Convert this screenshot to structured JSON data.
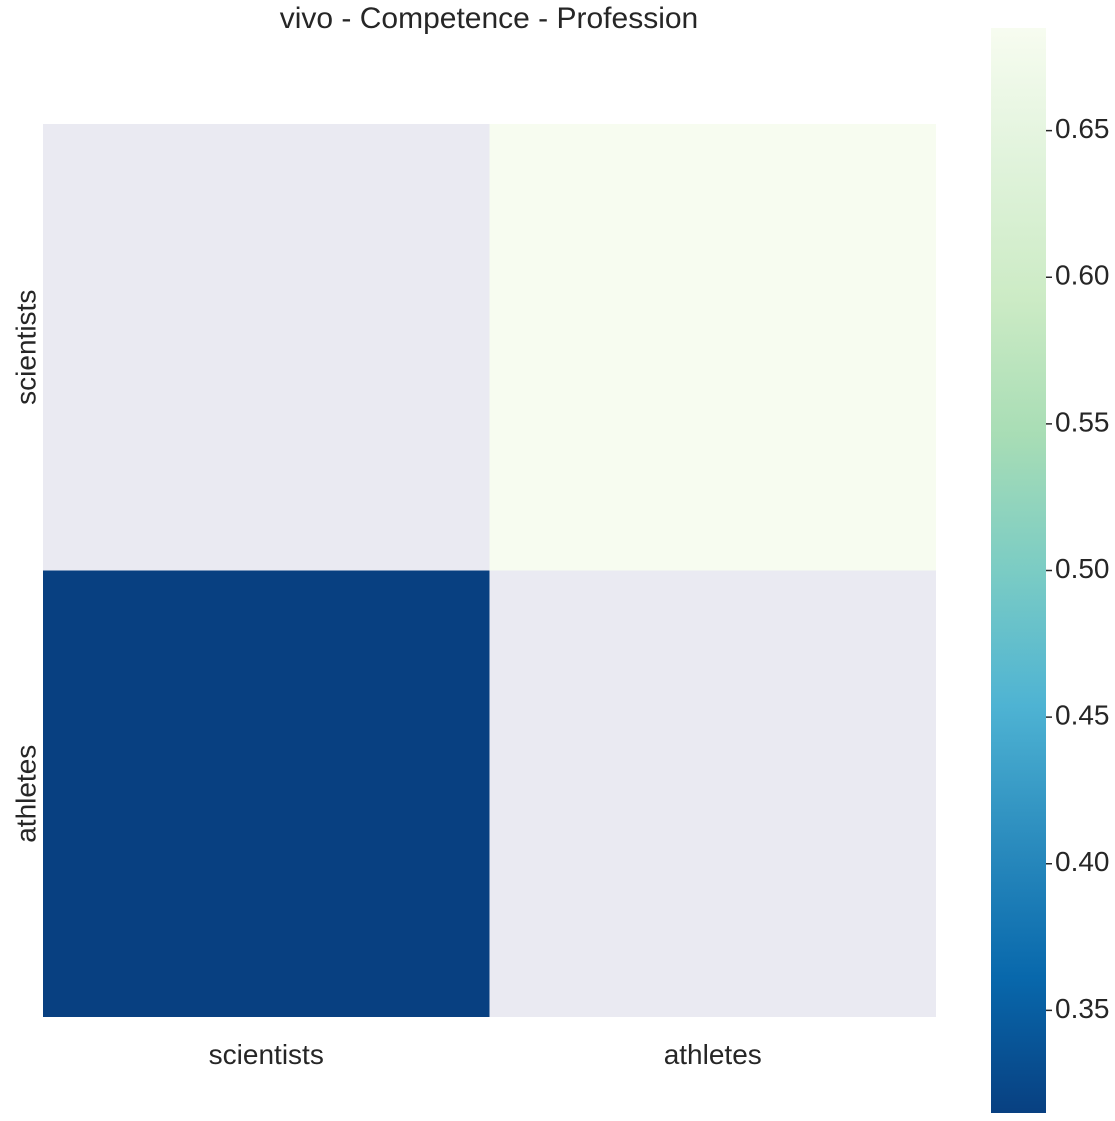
{
  "chart_data": {
    "type": "heatmap",
    "title": "vivo - Competence - Profession",
    "x_categories": [
      "scientists",
      "athletes"
    ],
    "y_categories": [
      "scientists",
      "athletes"
    ],
    "values": [
      [
        null,
        0.685
      ],
      [
        0.315,
        null
      ]
    ],
    "missing_color": "#eaeaf2",
    "colormap": "GnBu_r",
    "colorbar": {
      "min": 0.315,
      "max": 0.685,
      "ticks": [
        0.35,
        0.4,
        0.45,
        0.5,
        0.55,
        0.6,
        0.65
      ],
      "tick_labels": [
        "0.35",
        "0.40",
        "0.45",
        "0.50",
        "0.55",
        "0.60",
        "0.65"
      ]
    },
    "xlabel": "",
    "ylabel": "",
    "grid": false
  }
}
